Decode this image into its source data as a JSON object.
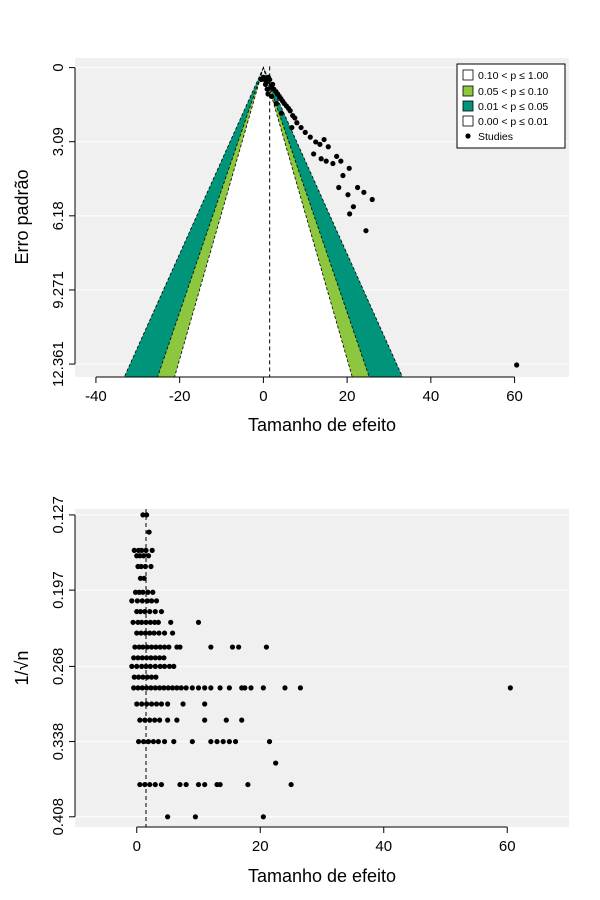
{
  "chart_data": [
    {
      "type": "scatter",
      "subtype": "contour-enhanced funnel plot",
      "xlabel": "Tamanho de efeito",
      "ylabel": "Erro padrão",
      "xlim": [
        -45,
        73
      ],
      "ylim": [
        12.9,
        -0.4
      ],
      "y_reversed": true,
      "x_ticks": [
        "-40",
        "-20",
        "0",
        "20",
        "40",
        "60"
      ],
      "y_ticks": [
        "0",
        "3.09",
        "6.18",
        "9.271",
        "12.361"
      ],
      "pooled_estimate": 1.5,
      "grid": true,
      "background": "#f0f0f0",
      "legend_position": "top-right",
      "legend": [
        {
          "label": "0.10 < p ≤ 1.00",
          "color": "#ffffff"
        },
        {
          "label": "0.05 < p ≤ 0.10",
          "color": "#8dc63f"
        },
        {
          "label": "0.01 < p ≤ 0.05",
          "color": "#00957a"
        },
        {
          "label": "0.00 < p ≤ 0.01",
          "color": "#ffffff"
        },
        {
          "label": "Studies",
          "marker": "point"
        }
      ],
      "points": [
        [
          -0.5,
          0.5
        ],
        [
          0,
          0.4
        ],
        [
          0.3,
          0.5
        ],
        [
          0.8,
          0.6
        ],
        [
          1.2,
          0.4
        ],
        [
          1.5,
          0.5
        ],
        [
          0.5,
          0.7
        ],
        [
          1.8,
          0.8
        ],
        [
          0.9,
          0.9
        ],
        [
          2.2,
          0.7
        ],
        [
          2.5,
          0.9
        ],
        [
          3.0,
          1.0
        ],
        [
          3.4,
          1.1
        ],
        [
          2.0,
          1.2
        ],
        [
          1.1,
          1.1
        ],
        [
          3.8,
          1.2
        ],
        [
          4.2,
          1.3
        ],
        [
          4.6,
          1.4
        ],
        [
          5.0,
          1.5
        ],
        [
          3.1,
          1.5
        ],
        [
          5.5,
          1.6
        ],
        [
          6.0,
          1.7
        ],
        [
          6.4,
          1.8
        ],
        [
          4.3,
          1.9
        ],
        [
          7.0,
          2.0
        ],
        [
          7.5,
          2.1
        ],
        [
          8.0,
          2.3
        ],
        [
          6.8,
          2.5
        ],
        [
          9.0,
          2.5
        ],
        [
          10.0,
          2.7
        ],
        [
          11.2,
          2.9
        ],
        [
          12.5,
          3.1
        ],
        [
          13.5,
          3.2
        ],
        [
          14.5,
          3.0
        ],
        [
          15.5,
          3.3
        ],
        [
          12.0,
          3.6
        ],
        [
          13.8,
          3.8
        ],
        [
          15.0,
          3.9
        ],
        [
          16.6,
          4.0
        ],
        [
          17.5,
          3.7
        ],
        [
          18.5,
          3.9
        ],
        [
          20.5,
          4.2
        ],
        [
          19.0,
          4.5
        ],
        [
          18.0,
          5.0
        ],
        [
          20.2,
          5.3
        ],
        [
          22.5,
          5.0
        ],
        [
          24.0,
          5.2
        ],
        [
          21.5,
          5.8
        ],
        [
          20.6,
          6.1
        ],
        [
          26.0,
          5.5
        ],
        [
          24.5,
          6.8
        ],
        [
          60.5,
          12.4
        ]
      ]
    },
    {
      "type": "scatter",
      "xlabel": "Tamanho de efeito",
      "ylabel": "1/√n",
      "xlim": [
        -10,
        70
      ],
      "ylim": [
        0.4175,
        0.1215
      ],
      "y_reversed": true,
      "x_ticks": [
        "0",
        "20",
        "40",
        "60"
      ],
      "y_ticks": [
        "0.127",
        "0.197",
        "0.268",
        "0.338",
        "0.408"
      ],
      "reference_line": 1.5,
      "grid": true,
      "background": "#f0f0f0",
      "rows": [
        {
          "y": 0.127,
          "x": [
            1.0,
            1.6
          ]
        },
        {
          "y": 0.143,
          "x": [
            2.0
          ]
        },
        {
          "y": 0.16,
          "x": [
            -0.4,
            0.3,
            0.8,
            1.5,
            2.5
          ]
        },
        {
          "y": 0.165,
          "x": [
            0.0,
            0.5,
            1.1,
            1.9
          ]
        },
        {
          "y": 0.175,
          "x": [
            0.2,
            0.7,
            1.4,
            2.3
          ]
        },
        {
          "y": 0.186,
          "x": [
            0.6,
            1.2
          ]
        },
        {
          "y": 0.199,
          "x": [
            -0.2,
            0.4,
            1.0,
            1.8,
            2.6
          ]
        },
        {
          "y": 0.207,
          "x": [
            -0.8,
            0.1,
            0.9,
            1.7,
            2.4,
            3.2
          ]
        },
        {
          "y": 0.217,
          "x": [
            0.0,
            0.6,
            1.3,
            2.1,
            3.0,
            4.0
          ]
        },
        {
          "y": 0.227,
          "x": [
            -0.6,
            0.2,
            0.8,
            1.5,
            2.2,
            2.9,
            3.5,
            5.5,
            10.0
          ]
        },
        {
          "y": 0.237,
          "x": [
            0.0,
            0.7,
            1.4,
            2.1,
            2.8,
            3.6,
            4.5,
            5.8
          ]
        },
        {
          "y": 0.25,
          "x": [
            -0.3,
            0.4,
            1.0,
            1.7,
            2.4,
            3.1,
            3.8,
            4.5,
            5.2,
            6.5,
            7.0,
            12.0,
            15.5,
            16.5,
            21.0
          ]
        },
        {
          "y": 0.26,
          "x": [
            -0.5,
            0.2,
            0.9,
            1.6,
            2.3,
            3.0,
            3.7,
            4.4
          ]
        },
        {
          "y": 0.268,
          "x": [
            -0.8,
            0.0,
            0.8,
            1.5,
            2.2,
            3.0,
            3.8,
            4.5,
            5.3,
            6.0
          ]
        },
        {
          "y": 0.278,
          "x": [
            -0.4,
            0.3,
            1.0,
            1.7,
            2.4,
            3.1
          ]
        },
        {
          "y": 0.288,
          "x": [
            -0.5,
            0.2,
            0.9,
            1.6,
            2.3,
            3.0,
            3.7,
            4.4,
            5.1,
            5.8,
            6.5,
            7.2,
            8.0,
            9.0,
            10.0,
            11.0,
            12.0,
            13.5,
            15.0,
            17.0,
            17.5,
            18.5,
            20.5,
            24.0,
            26.5,
            60.5
          ]
        },
        {
          "y": 0.303,
          "x": [
            0.0,
            0.8,
            1.6,
            2.4,
            3.2,
            4.0,
            5.0,
            7.5,
            11.0
          ]
        },
        {
          "y": 0.318,
          "x": [
            0.5,
            1.3,
            2.1,
            2.9,
            3.7,
            5.0,
            6.5,
            11.0,
            14.5,
            17.0
          ]
        },
        {
          "y": 0.338,
          "x": [
            0.3,
            1.1,
            1.9,
            2.7,
            3.5,
            4.5,
            6.0,
            9.0,
            12.0,
            13.0,
            14.0,
            15.0,
            16.0,
            21.5
          ]
        },
        {
          "y": 0.358,
          "x": [
            22.5
          ]
        },
        {
          "y": 0.378,
          "x": [
            0.5,
            1.3,
            2.1,
            3.0,
            4.0,
            7.0,
            8.0,
            10.0,
            11.0,
            13.0,
            13.5,
            18.0,
            25.0
          ]
        },
        {
          "y": 0.408,
          "x": [
            5.0,
            9.5,
            20.5
          ]
        }
      ]
    }
  ]
}
